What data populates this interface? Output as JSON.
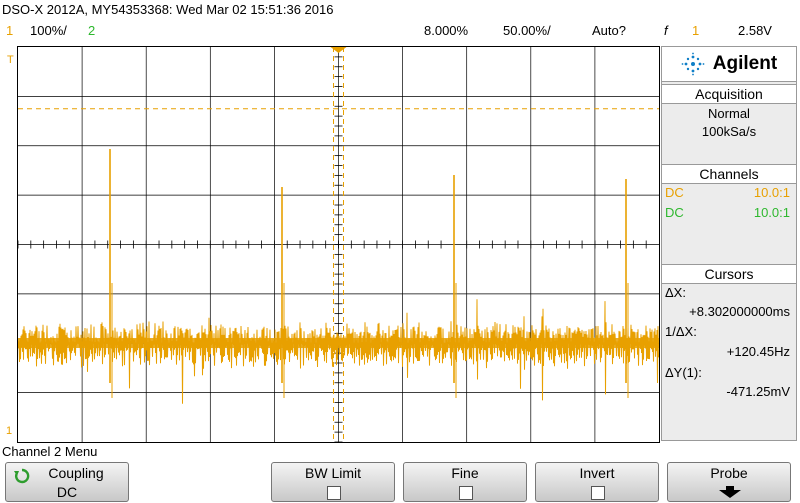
{
  "title": "DSO-X 2012A, MY54353368: Wed Mar 02 15:51:36 2016",
  "status": {
    "ch1_num": "1",
    "ch1_scale": "100%/",
    "ch2_num": "2",
    "timebase": "8.000%",
    "delay": "50.00%/",
    "trigger_mode": "Auto?",
    "trigger_icon": "rising-edge-icon",
    "trigger_source": "1",
    "trigger_level": "2.58V"
  },
  "plot": {
    "trace_color": "#e8a000",
    "grid": true,
    "divisions_x": 10,
    "divisions_y": 8,
    "left_top_marker": "T",
    "left_bottom_marker": "1"
  },
  "panel": {
    "brand": "Agilent",
    "acquisition_title": "Acquisition",
    "acq_mode": "Normal",
    "acq_rate": "100kSa/s",
    "channels_title": "Channels",
    "channels": [
      {
        "coupling": "DC",
        "probe": "10.0:1",
        "color": "#e8a000"
      },
      {
        "coupling": "DC",
        "probe": "10.0:1",
        "color": "#2eb82e"
      }
    ],
    "cursors_title": "Cursors",
    "dx_label": "ΔX:",
    "dx_value": "+8.302000000ms",
    "inv_dx_label": "1/ΔX:",
    "inv_dx_value": "+120.45Hz",
    "dy_label": "ΔY(1):",
    "dy_value": "-471.25mV"
  },
  "footer": {
    "menu_label": "Channel 2 Menu",
    "coupling_label": "Coupling",
    "coupling_value": "DC",
    "bw_limit_label": "BW Limit",
    "fine_label": "Fine",
    "invert_label": "Invert",
    "probe_label": "Probe"
  }
}
